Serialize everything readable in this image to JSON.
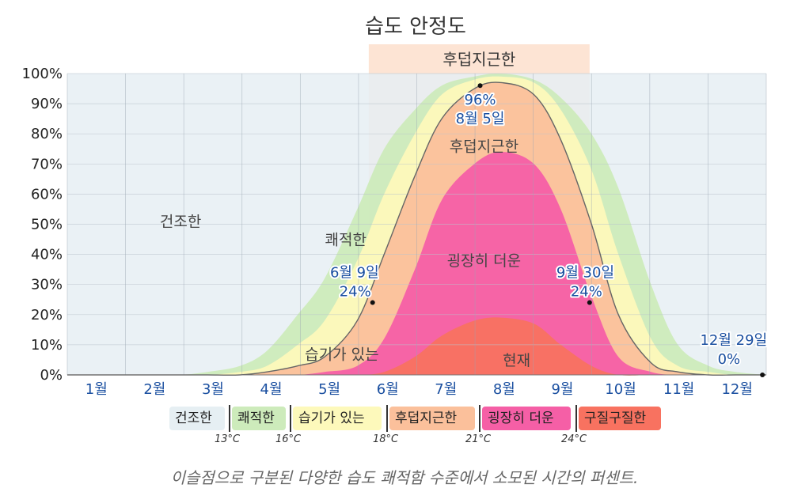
{
  "chart_data": {
    "type": "area",
    "title": "습도 안정도",
    "y_ticks": [
      "0%",
      "10%",
      "20%",
      "30%",
      "40%",
      "50%",
      "60%",
      "70%",
      "80%",
      "90%",
      "100%"
    ],
    "ylim": [
      0,
      100
    ],
    "months": [
      "1월",
      "2월",
      "3월",
      "4월",
      "5월",
      "6월",
      "7월",
      "8월",
      "9월",
      "10월",
      "11월",
      "12월"
    ],
    "grid": true,
    "x": [
      1,
      15,
      32,
      46,
      60,
      74,
      91,
      105,
      121,
      135,
      152,
      166,
      182,
      196,
      213,
      227,
      244,
      258,
      274,
      288,
      305,
      319,
      335,
      349,
      365
    ],
    "bands": [
      {
        "name": "건조한",
        "color": "#e6eff3"
      },
      {
        "name": "쾌적한",
        "color": "#cdebbb",
        "cum_top": [
          0,
          0,
          0,
          0,
          0,
          1,
          3,
          8,
          20,
          32,
          55,
          75,
          88,
          96,
          99,
          100,
          98,
          92,
          80,
          62,
          30,
          10,
          3,
          1,
          0
        ]
      },
      {
        "name": "습기가 있는",
        "color": "#fdf9bb",
        "cum_top": [
          0,
          0,
          0,
          0,
          0,
          0,
          1,
          3,
          10,
          18,
          38,
          60,
          80,
          93,
          98,
          99,
          97,
          88,
          68,
          40,
          12,
          3,
          1,
          0,
          0
        ]
      },
      {
        "name": "후덥지근한",
        "color": "#fbc09b",
        "cum_top": [
          0,
          0,
          0,
          0,
          0,
          0,
          0,
          1,
          3,
          6,
          18,
          40,
          66,
          85,
          95,
          97,
          93,
          78,
          50,
          20,
          4,
          1,
          0,
          0,
          0
        ]
      },
      {
        "name": "굉장히 더운",
        "color": "#f55fa6",
        "cum_top": [
          0,
          0,
          0,
          0,
          0,
          0,
          0,
          0,
          0,
          1,
          3,
          12,
          35,
          58,
          70,
          74,
          70,
          55,
          26,
          6,
          1,
          0,
          0,
          0,
          0
        ]
      },
      {
        "name": "구질구질한",
        "color": "#f87260",
        "cum_top": [
          0,
          0,
          0,
          0,
          0,
          0,
          0,
          0,
          0,
          0,
          0,
          1,
          6,
          13,
          18,
          19,
          17,
          10,
          3,
          0,
          0,
          0,
          0,
          0,
          0
        ]
      }
    ],
    "muggy_line": {
      "color": "#666666",
      "values": [
        0,
        0,
        0,
        0,
        0,
        0,
        0,
        1,
        3,
        6,
        18,
        40,
        66,
        85,
        95,
        97,
        93,
        78,
        50,
        20,
        4,
        1,
        0,
        0,
        0
      ]
    },
    "highlight": {
      "label": "후덥지근한",
      "start": 158,
      "end": 273,
      "color": "#fcdbc6"
    },
    "band_labels": [
      {
        "text": "건조한",
        "x": 60,
        "y": 51
      },
      {
        "text": "쾌적한",
        "x": 146,
        "y": 45
      },
      {
        "text": "습기가 있는",
        "x": 144,
        "y": 7
      },
      {
        "text": "후덥지근한",
        "x": 218,
        "y": 76
      },
      {
        "text": "굉장히 더운",
        "x": 218,
        "y": 38
      },
      {
        "text": "현재",
        "x": 235,
        "y": 5
      }
    ],
    "annotations": [
      {
        "x": 160,
        "y": 24,
        "lines": [
          "6월 9일",
          "24%"
        ],
        "pos": "above-left"
      },
      {
        "x": 216,
        "y": 96,
        "lines": [
          "96%",
          "8월 5일"
        ],
        "pos": "below"
      },
      {
        "x": 273,
        "y": 24,
        "lines": [
          "9월 30일",
          "24%"
        ],
        "pos": "above-right"
      },
      {
        "x": 363,
        "y": 0,
        "lines": [
          "12월 29일",
          "0%"
        ],
        "pos": "above-left"
      }
    ]
  },
  "legend": {
    "items": [
      {
        "label": "건조한",
        "color": "#e6eff3"
      },
      {
        "label": "쾌적한",
        "color": "#cdebbb"
      },
      {
        "label": "습기가 있는",
        "color": "#fdf9bb"
      },
      {
        "label": "후덥지근한",
        "color": "#fbc09b"
      },
      {
        "label": "굉장히 더운",
        "color": "#f55fa6"
      },
      {
        "label": "구질구질한",
        "color": "#f87260"
      }
    ],
    "thresholds": [
      "13°C",
      "16°C",
      "18°C",
      "21°C",
      "24°C"
    ]
  },
  "caption": "이슬점으로 구분된 다양한 습도 쾌적함 수준에서 소모된 시간의 퍼센트."
}
